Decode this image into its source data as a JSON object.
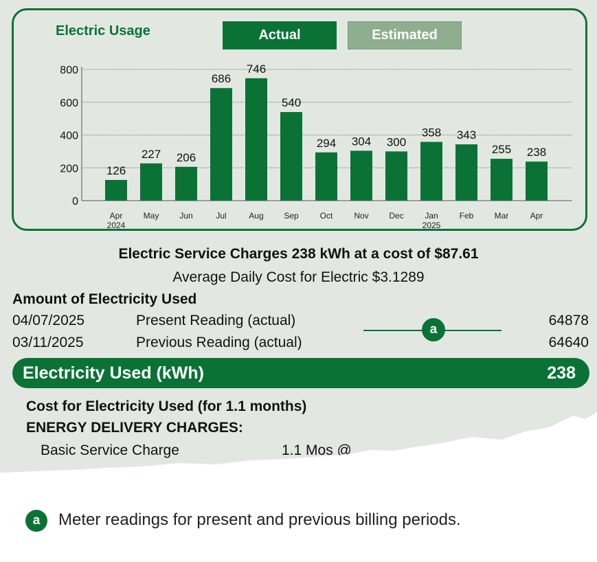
{
  "chart_data": {
    "type": "bar",
    "title": "Electric Usage",
    "legend": [
      "Actual",
      "Estimated"
    ],
    "categories": [
      "Apr",
      "May",
      "Jun",
      "Jul",
      "Aug",
      "Sep",
      "Oct",
      "Nov",
      "Dec",
      "Jan",
      "Feb",
      "Mar",
      "Apr"
    ],
    "year_labels": [
      "2024",
      "",
      "",
      "",
      "",
      "",
      "",
      "",
      "",
      "2025",
      "",
      "",
      ""
    ],
    "values": [
      126,
      227,
      206,
      686,
      746,
      540,
      294,
      304,
      300,
      358,
      343,
      255,
      238
    ],
    "status": [
      "actual",
      "actual",
      "actual",
      "actual",
      "actual",
      "actual",
      "actual",
      "actual",
      "actual",
      "actual",
      "actual",
      "actual",
      "actual"
    ],
    "yticks": [
      0,
      200,
      400,
      600,
      800
    ],
    "ylim": [
      0,
      800
    ],
    "grid": true,
    "xlabel": "",
    "ylabel": ""
  },
  "colors": {
    "brand_green": "#0b7236",
    "estimated_green": "#8fae8f",
    "paper": "#e2e8e1"
  },
  "summary": {
    "charges_line": "Electric Service Charges 238 kWh at a cost of $87.61",
    "average_line": "Average Daily Cost for Electric $3.1289"
  },
  "usage": {
    "section_title": "Amount of Electricity Used",
    "readings": [
      {
        "date": "04/07/2025",
        "description": "Present Reading (actual)",
        "value": "64878"
      },
      {
        "date": "03/11/2025",
        "description": "Previous Reading (actual)",
        "value": "64640"
      }
    ],
    "callout_marker": "a",
    "used_label": "Electricity Used (kWh)",
    "used_value": "238"
  },
  "cost": {
    "heading": "Cost for Electricity Used (for 1.1 months)",
    "delivery_heading": "ENERGY DELIVERY CHARGES:",
    "basic_label": "Basic Service Charge",
    "basic_qty": "1.1 Mos @"
  },
  "footnote": {
    "marker": "a",
    "text": "Meter readings for present and previous billing periods."
  }
}
